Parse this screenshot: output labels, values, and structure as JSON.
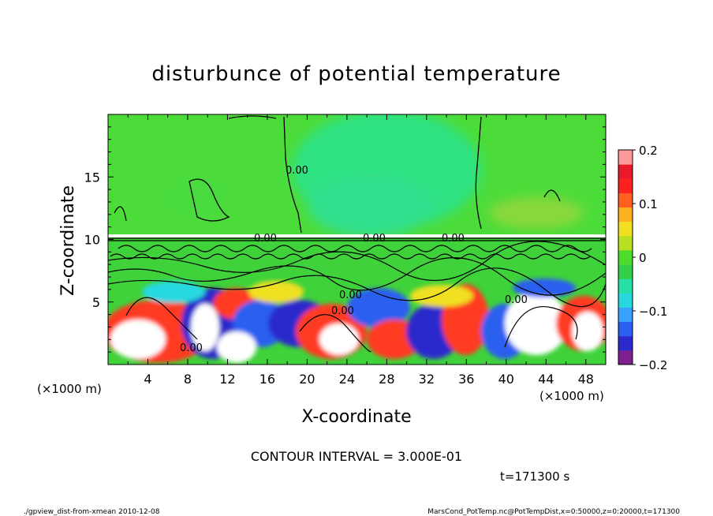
{
  "chart_data": {
    "type": "heatmap",
    "title": "disturbunce of potential temperature",
    "xlabel": "X-coordinate",
    "ylabel": "Z-coordinate",
    "x_unit_left": "(×1000 m)",
    "x_unit_right": "(×1000 m)",
    "xlim": [
      0,
      50
    ],
    "ylim": [
      0,
      20
    ],
    "x_ticks": [
      4,
      8,
      12,
      16,
      20,
      24,
      28,
      32,
      36,
      40,
      44,
      48
    ],
    "y_ticks": [
      5,
      10,
      15
    ],
    "colorbar": {
      "range": [
        -0.2,
        0.2
      ],
      "tick_values": [
        0.2,
        0.1,
        0,
        -0.1,
        -0.2
      ],
      "tick_labels": [
        "0.2",
        "0.1",
        "0",
        "−0.1",
        "−0.2"
      ],
      "colors": [
        "#7f1f8f",
        "#2a2acc",
        "#2a5ff0",
        "#3aa0ff",
        "#28d8e0",
        "#26e0a8",
        "#33d04a",
        "#4cdd2c",
        "#b8e020",
        "#f0e020",
        "#ffb020",
        "#ff6020",
        "#ff2020",
        "#e81a2a",
        "#ff9a9a"
      ]
    },
    "contour_labels": [
      "0.00",
      "0.00",
      "0.00",
      "0.00",
      "0.00",
      "0.00",
      "0.00",
      "0.00"
    ],
    "contour_interval_text": "CONTOUR INTERVAL = 3.000E-01",
    "time_text": "t=171300 s",
    "footer_left": "./gpview_dist-from-xmean   2010-12-08",
    "footer_right": "MarsCond_PotTemp.nc@PotTempDist,x=0:50000,z=0:20000,t=171300"
  }
}
